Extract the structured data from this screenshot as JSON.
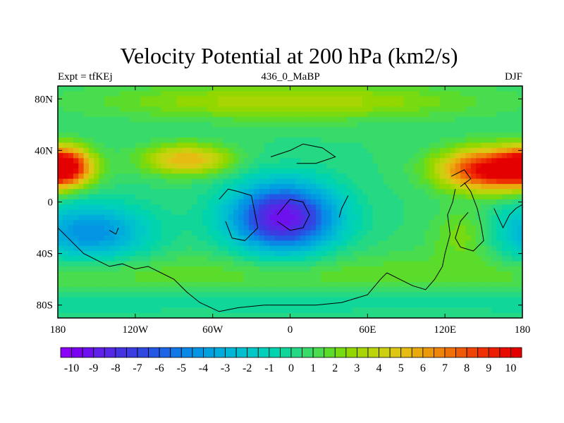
{
  "chart_data": {
    "type": "heatmap",
    "title": "Velocity Potential at 200 hPa (km2/s)",
    "left_string": "Expt = tfKEj",
    "center_string": "436_0_MaBP",
    "right_string": "DJF",
    "x_ticks": [
      "180",
      "120W",
      "60W",
      "0",
      "60E",
      "120E",
      "180"
    ],
    "x_tick_values": [
      -180,
      -120,
      -60,
      0,
      60,
      120,
      180
    ],
    "y_ticks": [
      "80N",
      "40N",
      "0",
      "40S",
      "80S"
    ],
    "y_tick_values": [
      80,
      40,
      0,
      -40,
      -80
    ],
    "xlim": [
      -180,
      180
    ],
    "ylim": [
      -90,
      90
    ],
    "colorbar": {
      "labels": [
        "-10",
        "-9",
        "-8",
        "-7",
        "-6",
        "-5",
        "-4",
        "-3",
        "-2",
        "-1",
        "0",
        "1",
        "2",
        "3",
        "4",
        "5",
        "6",
        "7",
        "8",
        "9",
        "10"
      ],
      "levels": [
        -10,
        -9.5,
        -9,
        -8.5,
        -8,
        -7.5,
        -7,
        -6.5,
        -6,
        -5.5,
        -5,
        -4.5,
        -4,
        -3.5,
        -3,
        -2.5,
        -2,
        -1.5,
        -1,
        -0.5,
        0,
        0.5,
        1,
        1.5,
        2,
        2.5,
        3,
        3.5,
        4,
        4.5,
        5,
        5.5,
        6,
        6.5,
        7,
        7.5,
        8,
        8.5,
        9,
        9.5,
        10
      ],
      "colors": [
        "#8a00f5",
        "#7b00f0",
        "#6e10ee",
        "#6020ea",
        "#5528e6",
        "#4532e2",
        "#3a3ce2",
        "#2f48e2",
        "#2356e4",
        "#1a66e6",
        "#1278e6",
        "#0a88e6",
        "#0494e4",
        "#00a0e0",
        "#00acdc",
        "#00b6d6",
        "#00bfcf",
        "#00c8c6",
        "#00cfbc",
        "#00d4ae",
        "#10d69a",
        "#24d884",
        "#38da6a",
        "#48dc4e",
        "#5cdc2a",
        "#78da10",
        "#92d800",
        "#a8d604",
        "#bcd40a",
        "#ccd010",
        "#dcc814",
        "#e6bc12",
        "#eaaa0e",
        "#ec980c",
        "#ee840a",
        "#f07008",
        "#f05a06",
        "#f04404",
        "#ee3002",
        "#ec1e00",
        "#e80c00",
        "#e40000"
      ]
    },
    "field_centers": [
      {
        "lon": -5,
        "lat": -12,
        "value": -10,
        "radius_lon": 40,
        "radius_lat": 26
      },
      {
        "lon": 155,
        "lat": 25,
        "value": 10,
        "radius_lon": 38,
        "radius_lat": 16
      },
      {
        "lon": -175,
        "lat": 28,
        "value": 8,
        "radius_lon": 20,
        "radius_lat": 14
      },
      {
        "lon": -155,
        "lat": -24,
        "value": -5,
        "radius_lon": 45,
        "radius_lat": 22
      },
      {
        "lon": -80,
        "lat": 33,
        "value": 5,
        "radius_lon": 34,
        "radius_lat": 12
      },
      {
        "lon": 0,
        "lat": 78,
        "value": 3,
        "radius_lon": 140,
        "radius_lat": 14
      },
      {
        "lon": 135,
        "lat": -25,
        "value": 2,
        "radius_lon": 25,
        "radius_lat": 20
      }
    ]
  }
}
